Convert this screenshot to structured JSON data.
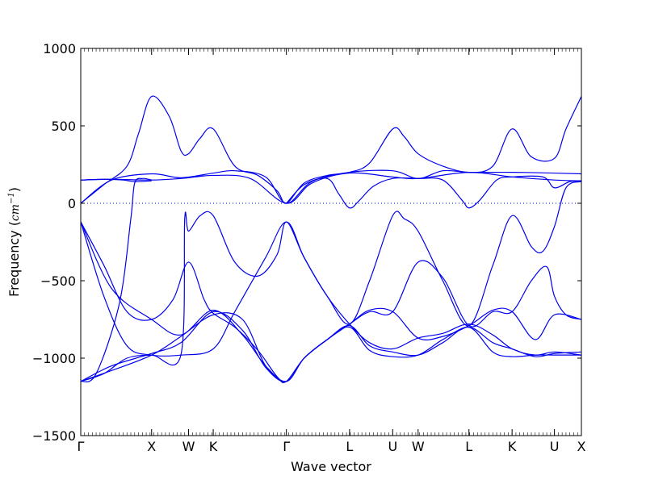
{
  "chart_data": {
    "type": "line",
    "title": "",
    "xlabel": "Wave vector",
    "ylabel": "Frequency (",
    "ylabel_unit": "cm",
    "ylabel_unit_exp": "−1",
    "ylabel_close": ")",
    "ylim": [
      -1500,
      1000
    ],
    "yticks": [
      1000,
      500,
      0,
      -500,
      -1000,
      -1500
    ],
    "ytick_labels": [
      "1000",
      "500",
      "0",
      "−500",
      "−1000",
      "−1500"
    ],
    "xlim": [
      0,
      6.5
    ],
    "xticks": [
      {
        "label": "Γ",
        "pos": 0.0
      },
      {
        "label": "X",
        "pos": 0.92
      },
      {
        "label": "W",
        "pos": 1.4
      },
      {
        "label": "K",
        "pos": 1.72
      },
      {
        "label": "Γ",
        "pos": 2.67
      },
      {
        "label": "L",
        "pos": 3.49
      },
      {
        "label": "U",
        "pos": 4.05
      },
      {
        "label": "W",
        "pos": 4.38
      },
      {
        "label": "L",
        "pos": 5.04
      },
      {
        "label": "K",
        "pos": 5.6
      },
      {
        "label": "U",
        "pos": 6.15
      },
      {
        "label": "X",
        "pos": 6.5
      }
    ],
    "zero_line": {
      "value": 0,
      "style": "dotted"
    },
    "grid": false,
    "line_color": "#0000ee",
    "series": [
      {
        "x": [
          0,
          0.3,
          0.6,
          0.75,
          0.92,
          1.15,
          1.3,
          1.4,
          1.55,
          1.72,
          2.0,
          2.3,
          2.55,
          2.67,
          2.9,
          3.2,
          3.49,
          3.75,
          4.05,
          4.2,
          4.38,
          4.7,
          5.04,
          5.35,
          5.6,
          5.85,
          6.15,
          6.3,
          6.5
        ],
        "y": [
          0,
          120,
          240,
          450,
          690,
          560,
          340,
          320,
          420,
          480,
          240,
          180,
          80,
          0,
          130,
          180,
          200,
          260,
          480,
          430,
          320,
          240,
          200,
          240,
          480,
          300,
          290,
          480,
          690
        ]
      },
      {
        "x": [
          0,
          0.4,
          0.92,
          1.3,
          1.72,
          2.0,
          2.4,
          2.67,
          3.0,
          3.49,
          4.05,
          4.38,
          4.7,
          5.04,
          5.6,
          6.15,
          6.5
        ],
        "y": [
          0,
          150,
          190,
          165,
          195,
          210,
          170,
          0,
          140,
          200,
          210,
          160,
          210,
          200,
          200,
          195,
          190
        ]
      },
      {
        "x": [
          0,
          0.4,
          0.92,
          1.3,
          1.72,
          2.2,
          2.67,
          3.0,
          3.49,
          4.05,
          4.38,
          5.04,
          5.6,
          6.15,
          6.5
        ],
        "y": [
          150,
          155,
          150,
          160,
          180,
          160,
          0,
          130,
          195,
          170,
          160,
          200,
          170,
          150,
          145
        ]
      },
      {
        "x": [
          0,
          0.3,
          0.55,
          0.7,
          0.92
        ],
        "y": [
          150,
          155,
          150,
          140,
          145
        ]
      },
      {
        "x": [
          2.67,
          2.9,
          3.2,
          3.35,
          3.49,
          3.62,
          3.8,
          4.05,
          4.38,
          4.7,
          4.95,
          5.04,
          5.18,
          5.4,
          5.6,
          6.0,
          6.15,
          6.35,
          6.5
        ],
        "y": [
          0,
          120,
          160,
          60,
          -30,
          20,
          110,
          160,
          160,
          150,
          20,
          -30,
          20,
          150,
          170,
          170,
          100,
          140,
          140
        ]
      },
      {
        "x": [
          0,
          0.2,
          0.5,
          0.65,
          0.7,
          0.8,
          0.92
        ],
        "y": [
          -1150,
          -1100,
          -650,
          -100,
          130,
          160,
          150
        ]
      },
      {
        "x": [
          0,
          0.3,
          0.6,
          0.92,
          1.3,
          1.35,
          1.4,
          1.55,
          1.72,
          2.0,
          2.3,
          2.55,
          2.67,
          2.9,
          3.2,
          3.49,
          3.75,
          4.05,
          4.2,
          4.38,
          4.7,
          5.04,
          5.35,
          5.6,
          5.85,
          6.0,
          6.15,
          6.3,
          6.5
        ],
        "y": [
          -1150,
          -1100,
          -1000,
          -980,
          -980,
          -100,
          -180,
          -80,
          -80,
          -380,
          -470,
          -330,
          -120,
          -350,
          -600,
          -780,
          -500,
          -80,
          -100,
          -180,
          -500,
          -790,
          -400,
          -80,
          -280,
          -310,
          -150,
          100,
          140
        ]
      },
      {
        "x": [
          0,
          0.3,
          0.6,
          0.92,
          1.2,
          1.4,
          1.6,
          1.72,
          2.0,
          2.3,
          2.55,
          2.67,
          2.9,
          3.2,
          3.49,
          3.75,
          4.05,
          4.38,
          4.7,
          5.04,
          5.35,
          5.6,
          5.85,
          6.05,
          6.15,
          6.3,
          6.5
        ],
        "y": [
          -120,
          -400,
          -700,
          -750,
          -620,
          -380,
          -620,
          -710,
          -800,
          -950,
          -1120,
          -1150,
          -1000,
          -880,
          -780,
          -700,
          -700,
          -380,
          -480,
          -790,
          -700,
          -700,
          -500,
          -410,
          -600,
          -720,
          -750
        ]
      },
      {
        "x": [
          0,
          0.4,
          0.92,
          1.3,
          1.72,
          2.1,
          2.4,
          2.67,
          2.9,
          3.2,
          3.49,
          3.75,
          4.05,
          4.38,
          4.7,
          5.04,
          5.35,
          5.6,
          5.9,
          6.15,
          6.5
        ],
        "y": [
          -120,
          -550,
          -750,
          -850,
          -690,
          -850,
          -1050,
          -1150,
          -1000,
          -880,
          -780,
          -690,
          -700,
          -870,
          -860,
          -790,
          -690,
          -700,
          -880,
          -720,
          -750
        ]
      },
      {
        "x": [
          0,
          0.3,
          0.6,
          0.92,
          1.3,
          1.72,
          2.0,
          2.4,
          2.67,
          2.9,
          3.2,
          3.49,
          3.75,
          4.05,
          4.38,
          4.7,
          5.04,
          5.35,
          5.6,
          5.9,
          6.15,
          6.5
        ],
        "y": [
          -120,
          -600,
          -920,
          -980,
          -980,
          -940,
          -700,
          -350,
          -120,
          -350,
          -600,
          -780,
          -900,
          -940,
          -870,
          -840,
          -780,
          -850,
          -940,
          -980,
          -960,
          -980
        ]
      },
      {
        "x": [
          0,
          0.4,
          0.92,
          1.3,
          1.72,
          2.1,
          2.4,
          2.67,
          2.9,
          3.2,
          3.49,
          3.75,
          4.05,
          4.38,
          4.7,
          5.04,
          5.35,
          5.6,
          5.9,
          6.15,
          6.5
        ],
        "y": [
          -1150,
          -1080,
          -980,
          -860,
          -720,
          -750,
          -1050,
          -1150,
          -1000,
          -880,
          -790,
          -920,
          -960,
          -980,
          -900,
          -800,
          -960,
          -990,
          -980,
          -980,
          -980
        ]
      },
      {
        "x": [
          0,
          0.4,
          0.92,
          1.3,
          1.72,
          2.1,
          2.4,
          2.67,
          2.9,
          3.2,
          3.49,
          3.75,
          4.05,
          4.38,
          4.7,
          5.04,
          5.35,
          5.6,
          5.9,
          6.15,
          6.5
        ],
        "y": [
          -1150,
          -1050,
          -970,
          -900,
          -700,
          -820,
          -1060,
          -1150,
          -1000,
          -880,
          -800,
          -950,
          -990,
          -980,
          -880,
          -800,
          -900,
          -940,
          -990,
          -970,
          -960
        ]
      }
    ]
  }
}
